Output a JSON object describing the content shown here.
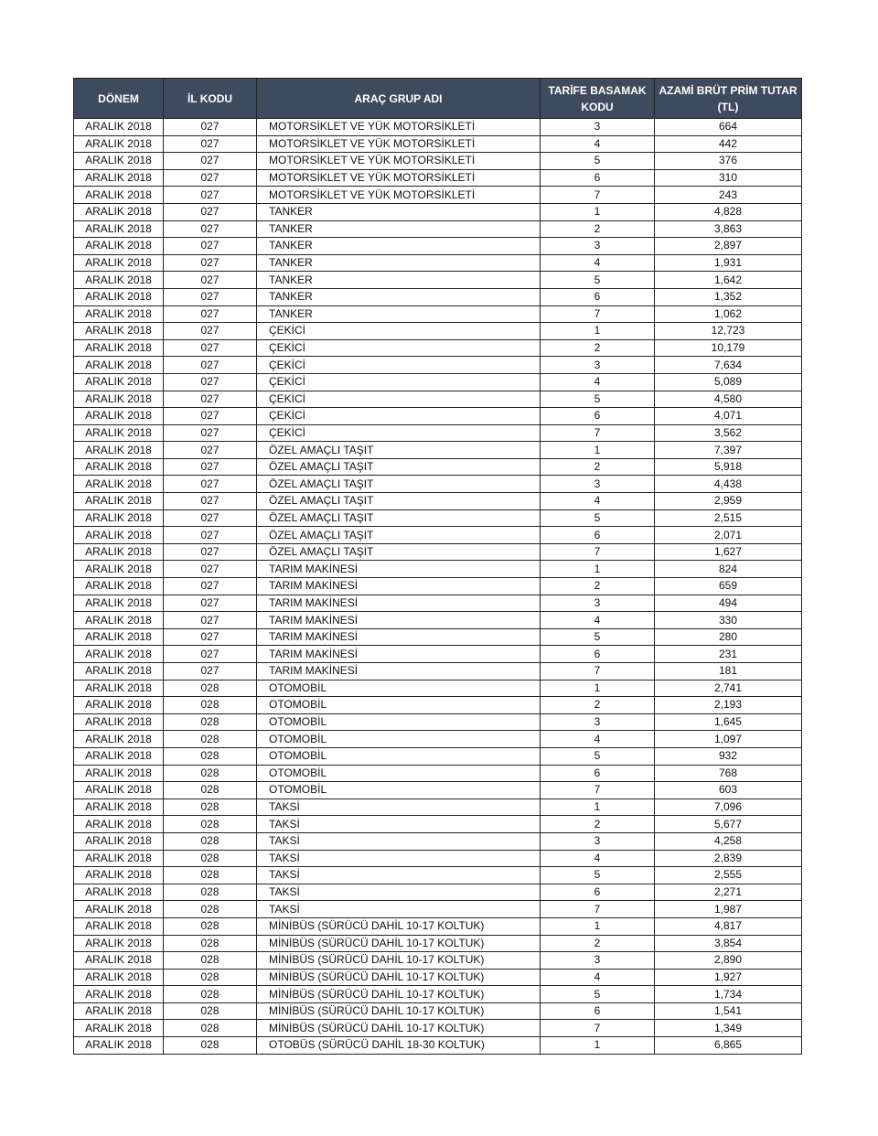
{
  "headers": [
    "DÖNEM",
    "İL KODU",
    "ARAÇ GRUP ADI",
    "TARİFE BASAMAK KODU",
    "AZAMİ BRÜT PRİM TUTAR (TL)"
  ],
  "colors": {
    "header_bg": "#3e4a5d",
    "header_text": "#ffffff"
  },
  "rows": [
    [
      "ARALIK 2018",
      "027",
      "MOTORSİKLET VE YÜK MOTORSİKLETİ",
      "3",
      "664"
    ],
    [
      "ARALIK 2018",
      "027",
      "MOTORSİKLET VE YÜK MOTORSİKLETİ",
      "4",
      "442"
    ],
    [
      "ARALIK 2018",
      "027",
      "MOTORSİKLET VE YÜK MOTORSİKLETİ",
      "5",
      "376"
    ],
    [
      "ARALIK 2018",
      "027",
      "MOTORSİKLET VE YÜK MOTORSİKLETİ",
      "6",
      "310"
    ],
    [
      "ARALIK 2018",
      "027",
      "MOTORSİKLET VE YÜK MOTORSİKLETİ",
      "7",
      "243"
    ],
    [
      "ARALIK 2018",
      "027",
      "TANKER",
      "1",
      "4,828"
    ],
    [
      "ARALIK 2018",
      "027",
      "TANKER",
      "2",
      "3,863"
    ],
    [
      "ARALIK 2018",
      "027",
      "TANKER",
      "3",
      "2,897"
    ],
    [
      "ARALIK 2018",
      "027",
      "TANKER",
      "4",
      "1,931"
    ],
    [
      "ARALIK 2018",
      "027",
      "TANKER",
      "5",
      "1,642"
    ],
    [
      "ARALIK 2018",
      "027",
      "TANKER",
      "6",
      "1,352"
    ],
    [
      "ARALIK 2018",
      "027",
      "TANKER",
      "7",
      "1,062"
    ],
    [
      "ARALIK 2018",
      "027",
      "ÇEKİCİ",
      "1",
      "12,723"
    ],
    [
      "ARALIK 2018",
      "027",
      "ÇEKİCİ",
      "2",
      "10,179"
    ],
    [
      "ARALIK 2018",
      "027",
      "ÇEKİCİ",
      "3",
      "7,634"
    ],
    [
      "ARALIK 2018",
      "027",
      "ÇEKİCİ",
      "4",
      "5,089"
    ],
    [
      "ARALIK 2018",
      "027",
      "ÇEKİCİ",
      "5",
      "4,580"
    ],
    [
      "ARALIK 2018",
      "027",
      "ÇEKİCİ",
      "6",
      "4,071"
    ],
    [
      "ARALIK 2018",
      "027",
      "ÇEKİCİ",
      "7",
      "3,562"
    ],
    [
      "ARALIK 2018",
      "027",
      "ÖZEL AMAÇLI TAŞIT",
      "1",
      "7,397"
    ],
    [
      "ARALIK 2018",
      "027",
      "ÖZEL AMAÇLI TAŞIT",
      "2",
      "5,918"
    ],
    [
      "ARALIK 2018",
      "027",
      "ÖZEL AMAÇLI TAŞIT",
      "3",
      "4,438"
    ],
    [
      "ARALIK 2018",
      "027",
      "ÖZEL AMAÇLI TAŞIT",
      "4",
      "2,959"
    ],
    [
      "ARALIK 2018",
      "027",
      "ÖZEL AMAÇLI TAŞIT",
      "5",
      "2,515"
    ],
    [
      "ARALIK 2018",
      "027",
      "ÖZEL AMAÇLI TAŞIT",
      "6",
      "2,071"
    ],
    [
      "ARALIK 2018",
      "027",
      "ÖZEL AMAÇLI TAŞIT",
      "7",
      "1,627"
    ],
    [
      "ARALIK 2018",
      "027",
      "TARIM MAKİNESİ",
      "1",
      "824"
    ],
    [
      "ARALIK 2018",
      "027",
      "TARIM MAKİNESİ",
      "2",
      "659"
    ],
    [
      "ARALIK 2018",
      "027",
      "TARIM MAKİNESİ",
      "3",
      "494"
    ],
    [
      "ARALIK 2018",
      "027",
      "TARIM MAKİNESİ",
      "4",
      "330"
    ],
    [
      "ARALIK 2018",
      "027",
      "TARIM MAKİNESİ",
      "5",
      "280"
    ],
    [
      "ARALIK 2018",
      "027",
      "TARIM MAKİNESİ",
      "6",
      "231"
    ],
    [
      "ARALIK 2018",
      "027",
      "TARIM MAKİNESİ",
      "7",
      "181"
    ],
    [
      "ARALIK 2018",
      "028",
      "OTOMOBİL",
      "1",
      "2,741"
    ],
    [
      "ARALIK 2018",
      "028",
      "OTOMOBİL",
      "2",
      "2,193"
    ],
    [
      "ARALIK 2018",
      "028",
      "OTOMOBİL",
      "3",
      "1,645"
    ],
    [
      "ARALIK 2018",
      "028",
      "OTOMOBİL",
      "4",
      "1,097"
    ],
    [
      "ARALIK 2018",
      "028",
      "OTOMOBİL",
      "5",
      "932"
    ],
    [
      "ARALIK 2018",
      "028",
      "OTOMOBİL",
      "6",
      "768"
    ],
    [
      "ARALIK 2018",
      "028",
      "OTOMOBİL",
      "7",
      "603"
    ],
    [
      "ARALIK 2018",
      "028",
      "TAKSİ",
      "1",
      "7,096"
    ],
    [
      "ARALIK 2018",
      "028",
      "TAKSİ",
      "2",
      "5,677"
    ],
    [
      "ARALIK 2018",
      "028",
      "TAKSİ",
      "3",
      "4,258"
    ],
    [
      "ARALIK 2018",
      "028",
      "TAKSİ",
      "4",
      "2,839"
    ],
    [
      "ARALIK 2018",
      "028",
      "TAKSİ",
      "5",
      "2,555"
    ],
    [
      "ARALIK 2018",
      "028",
      "TAKSİ",
      "6",
      "2,271"
    ],
    [
      "ARALIK 2018",
      "028",
      "TAKSİ",
      "7",
      "1,987"
    ],
    [
      "ARALIK 2018",
      "028",
      "MİNİBÜS (SÜRÜCÜ DAHİL 10-17 KOLTUK)",
      "1",
      "4,817"
    ],
    [
      "ARALIK 2018",
      "028",
      "MİNİBÜS (SÜRÜCÜ DAHİL 10-17 KOLTUK)",
      "2",
      "3,854"
    ],
    [
      "ARALIK 2018",
      "028",
      "MİNİBÜS (SÜRÜCÜ DAHİL 10-17 KOLTUK)",
      "3",
      "2,890"
    ],
    [
      "ARALIK 2018",
      "028",
      "MİNİBÜS (SÜRÜCÜ DAHİL 10-17 KOLTUK)",
      "4",
      "1,927"
    ],
    [
      "ARALIK 2018",
      "028",
      "MİNİBÜS (SÜRÜCÜ DAHİL 10-17 KOLTUK)",
      "5",
      "1,734"
    ],
    [
      "ARALIK 2018",
      "028",
      "MİNİBÜS (SÜRÜCÜ DAHİL 10-17 KOLTUK)",
      "6",
      "1,541"
    ],
    [
      "ARALIK 2018",
      "028",
      "MİNİBÜS (SÜRÜCÜ DAHİL 10-17 KOLTUK)",
      "7",
      "1,349"
    ],
    [
      "ARALIK 2018",
      "028",
      "OTOBÜS (SÜRÜCÜ DAHİL 18-30 KOLTUK)",
      "1",
      "6,865"
    ]
  ]
}
